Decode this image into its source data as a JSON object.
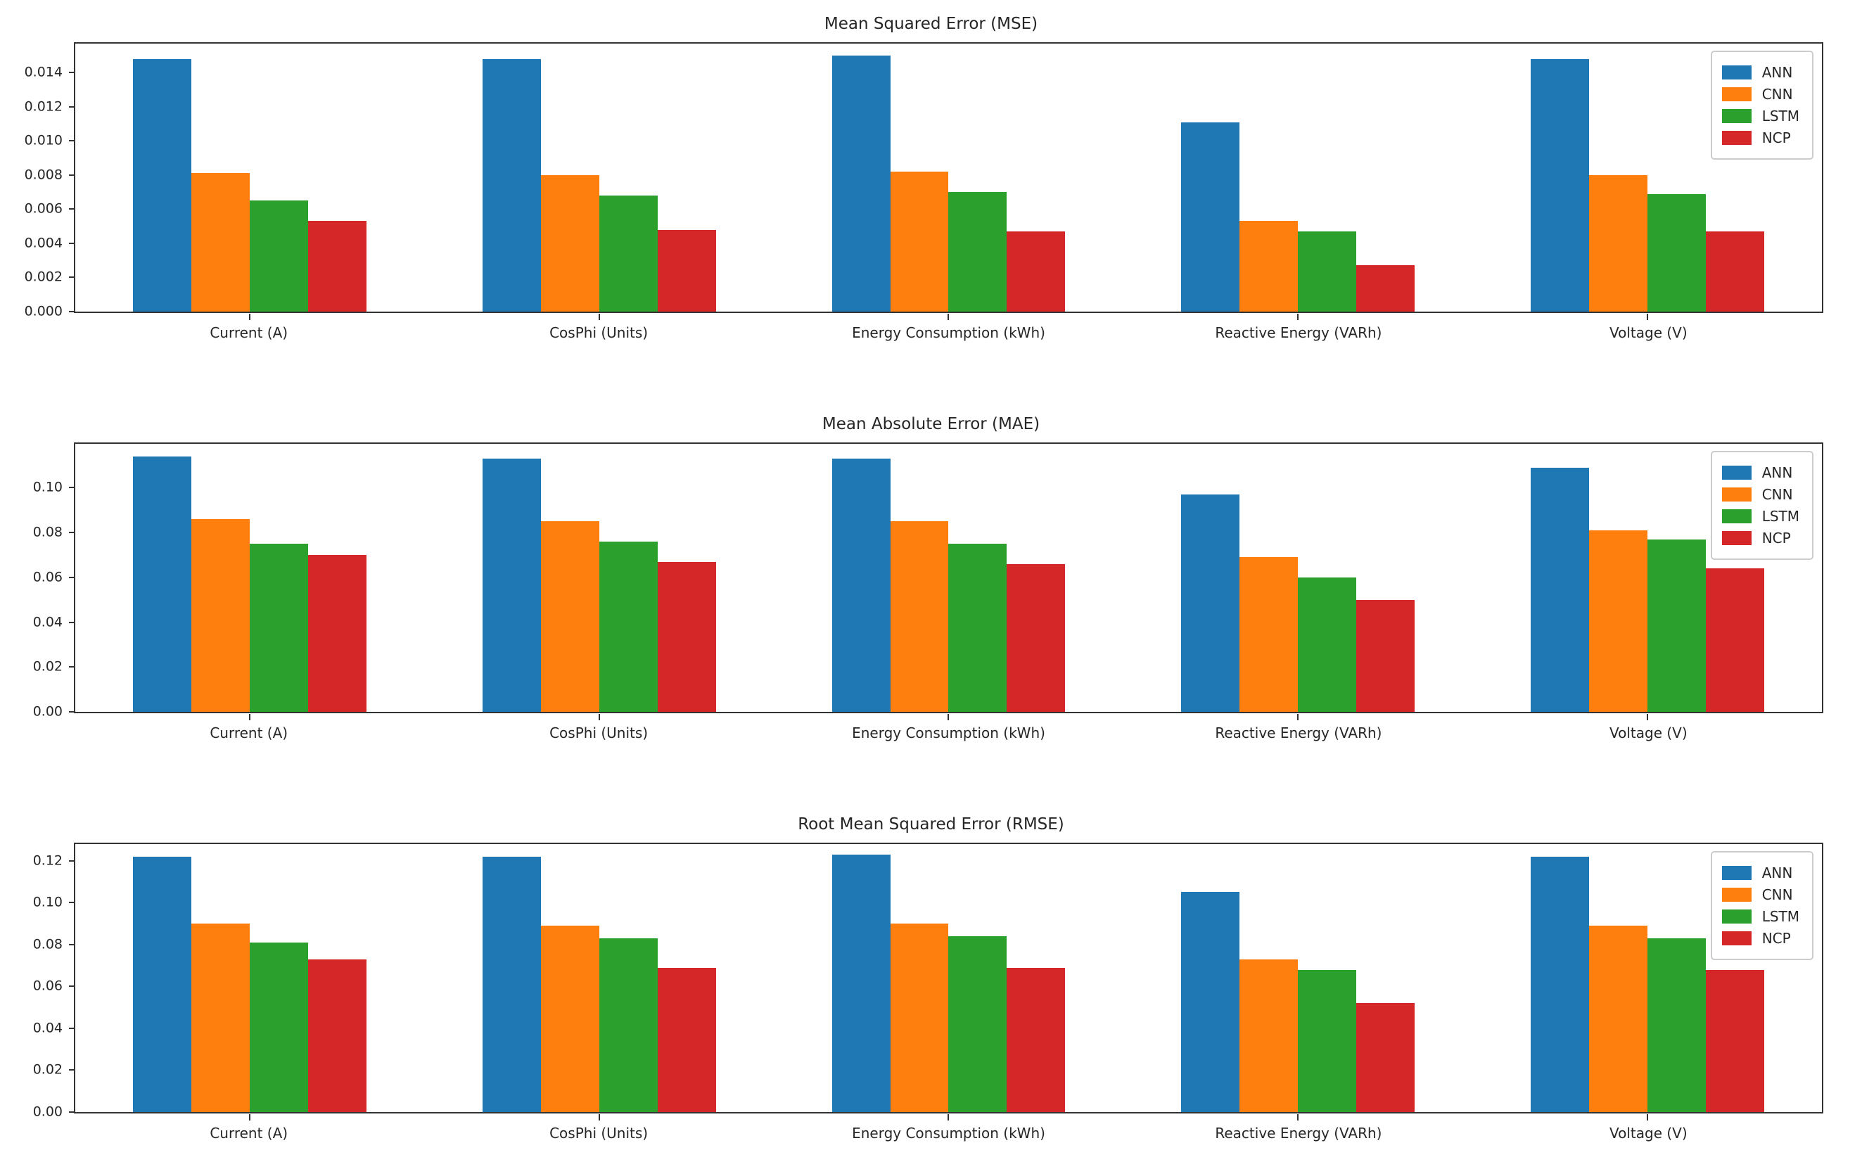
{
  "figure": {
    "background": "#ffffff",
    "text_color": "#262626",
    "spine_color": "#333333"
  },
  "series_colors": {
    "ANN": "#1f77b4",
    "CNN": "#ff7f0e",
    "LSTM": "#2ca02c",
    "NCP": "#d62728"
  },
  "chart_data": [
    {
      "type": "bar",
      "title": "Mean Squared Error (MSE)",
      "xlabel": "",
      "ylabel": "",
      "grid": false,
      "legend_position": "upper right",
      "ylim": [
        0,
        0.0157
      ],
      "yticks": [
        {
          "value": 0.0,
          "label": "0.000"
        },
        {
          "value": 0.002,
          "label": "0.002"
        },
        {
          "value": 0.004,
          "label": "0.004"
        },
        {
          "value": 0.006,
          "label": "0.006"
        },
        {
          "value": 0.008,
          "label": "0.008"
        },
        {
          "value": 0.01,
          "label": "0.010"
        },
        {
          "value": 0.012,
          "label": "0.012"
        },
        {
          "value": 0.014,
          "label": "0.014"
        }
      ],
      "categories": [
        "Current (A)",
        "CosPhi (Units)",
        "Energy Consumption (kWh)",
        "Reactive Energy (VARh)",
        "Voltage (V)"
      ],
      "series": [
        {
          "name": "ANN",
          "color": "#1f77b4",
          "values": [
            0.0148,
            0.0148,
            0.015,
            0.0111,
            0.0148
          ]
        },
        {
          "name": "CNN",
          "color": "#ff7f0e",
          "values": [
            0.0081,
            0.008,
            0.0082,
            0.0053,
            0.008
          ]
        },
        {
          "name": "LSTM",
          "color": "#2ca02c",
          "values": [
            0.0065,
            0.0068,
            0.007,
            0.0047,
            0.0069
          ]
        },
        {
          "name": "NCP",
          "color": "#d62728",
          "values": [
            0.0053,
            0.0048,
            0.0047,
            0.0027,
            0.0047
          ]
        }
      ]
    },
    {
      "type": "bar",
      "title": "Mean Absolute Error (MAE)",
      "xlabel": "",
      "ylabel": "",
      "grid": false,
      "legend_position": "upper right",
      "ylim": [
        0,
        0.1196
      ],
      "yticks": [
        {
          "value": 0.0,
          "label": "0.00"
        },
        {
          "value": 0.02,
          "label": "0.02"
        },
        {
          "value": 0.04,
          "label": "0.04"
        },
        {
          "value": 0.06,
          "label": "0.06"
        },
        {
          "value": 0.08,
          "label": "0.08"
        },
        {
          "value": 0.1,
          "label": "0.10"
        }
      ],
      "categories": [
        "Current (A)",
        "CosPhi (Units)",
        "Energy Consumption (kWh)",
        "Reactive Energy (VARh)",
        "Voltage (V)"
      ],
      "series": [
        {
          "name": "ANN",
          "color": "#1f77b4",
          "values": [
            0.114,
            0.113,
            0.113,
            0.097,
            0.109
          ]
        },
        {
          "name": "CNN",
          "color": "#ff7f0e",
          "values": [
            0.086,
            0.085,
            0.085,
            0.069,
            0.081
          ]
        },
        {
          "name": "LSTM",
          "color": "#2ca02c",
          "values": [
            0.075,
            0.076,
            0.075,
            0.06,
            0.077
          ]
        },
        {
          "name": "NCP",
          "color": "#d62728",
          "values": [
            0.07,
            0.067,
            0.066,
            0.05,
            0.064
          ]
        }
      ]
    },
    {
      "type": "bar",
      "title": "Root Mean Squared Error (RMSE)",
      "xlabel": "",
      "ylabel": "",
      "grid": false,
      "legend_position": "upper right",
      "ylim": [
        0,
        0.128
      ],
      "yticks": [
        {
          "value": 0.0,
          "label": "0.00"
        },
        {
          "value": 0.02,
          "label": "0.02"
        },
        {
          "value": 0.04,
          "label": "0.04"
        },
        {
          "value": 0.06,
          "label": "0.06"
        },
        {
          "value": 0.08,
          "label": "0.08"
        },
        {
          "value": 0.1,
          "label": "0.10"
        },
        {
          "value": 0.12,
          "label": "0.12"
        }
      ],
      "categories": [
        "Current (A)",
        "CosPhi (Units)",
        "Energy Consumption (kWh)",
        "Reactive Energy (VARh)",
        "Voltage (V)"
      ],
      "series": [
        {
          "name": "ANN",
          "color": "#1f77b4",
          "values": [
            0.122,
            0.122,
            0.123,
            0.105,
            0.122
          ]
        },
        {
          "name": "CNN",
          "color": "#ff7f0e",
          "values": [
            0.09,
            0.089,
            0.09,
            0.073,
            0.089
          ]
        },
        {
          "name": "LSTM",
          "color": "#2ca02c",
          "values": [
            0.081,
            0.083,
            0.084,
            0.068,
            0.083
          ]
        },
        {
          "name": "NCP",
          "color": "#d62728",
          "values": [
            0.073,
            0.069,
            0.069,
            0.052,
            0.068
          ]
        }
      ]
    }
  ]
}
